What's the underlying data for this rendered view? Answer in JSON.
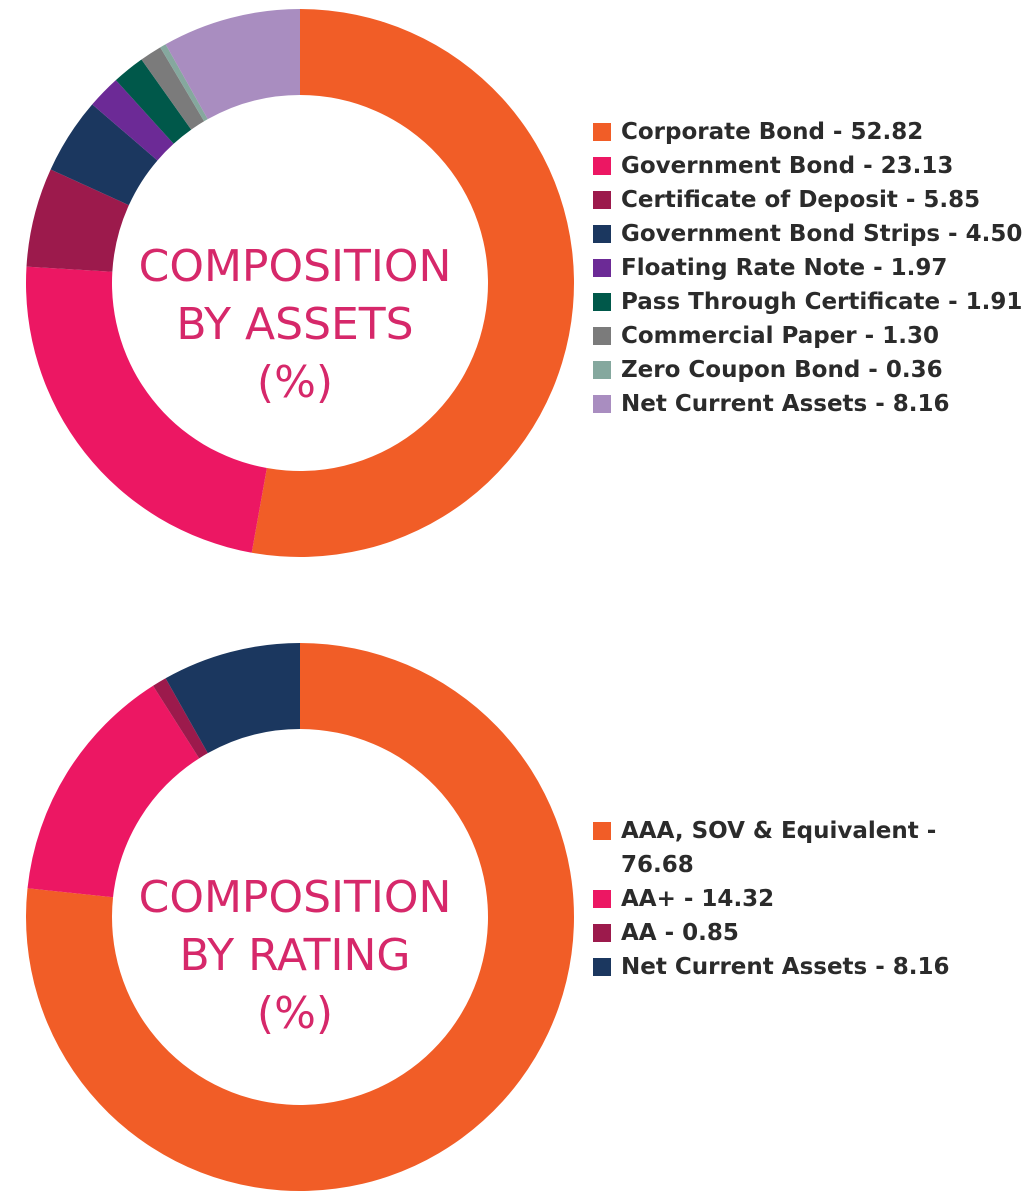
{
  "chart_data": [
    {
      "type": "pie",
      "title": "COMPOSITION BY ASSETS (%)",
      "title_lines": [
        "COMPOSITION",
        "BY ASSETS",
        "(%)"
      ],
      "donut": true,
      "start": "top, clockwise",
      "slices": [
        {
          "label": "Corporate Bond - 52.82",
          "value": 52.82,
          "color": "#f15d27"
        },
        {
          "label": "Government Bond - 23.13",
          "value": 23.13,
          "color": "#ec1763"
        },
        {
          "label": "Certificate of Deposit - 5.85",
          "value": 5.85,
          "color": "#9c1a4c"
        },
        {
          "label": "Government Bond Strips - 4.50",
          "value": 4.5,
          "color": "#1b375f"
        },
        {
          "label": "Floating Rate Note - 1.97",
          "value": 1.97,
          "color": "#6c2a96"
        },
        {
          "label": "Pass Through Certificate - 1.91",
          "value": 1.91,
          "color": "#00584a"
        },
        {
          "label": "Commercial Paper - 1.30",
          "value": 1.3,
          "color": "#7b7b7b"
        },
        {
          "label": "Zero Coupon Bond - 0.36",
          "value": 0.36,
          "color": "#85a89e"
        },
        {
          "label": "Net Current Assets - 8.16",
          "value": 8.16,
          "color": "#a98dc0"
        }
      ]
    },
    {
      "type": "pie",
      "title": "COMPOSITION BY RATING (%)",
      "title_lines": [
        "COMPOSITION",
        "BY RATING",
        "(%)"
      ],
      "donut": true,
      "start": "top, clockwise",
      "slices": [
        {
          "label": "AAA, SOV & Equivalent - 76.68",
          "value": 76.68,
          "color": "#f15d27"
        },
        {
          "label": "AA+ - 14.32",
          "value": 14.32,
          "color": "#ec1763"
        },
        {
          "label": "AA - 0.85",
          "value": 0.85,
          "color": "#9c1a4c"
        },
        {
          "label": "Net Current Assets - 8.16",
          "value": 8.16,
          "color": "#1b375f"
        }
      ]
    }
  ]
}
